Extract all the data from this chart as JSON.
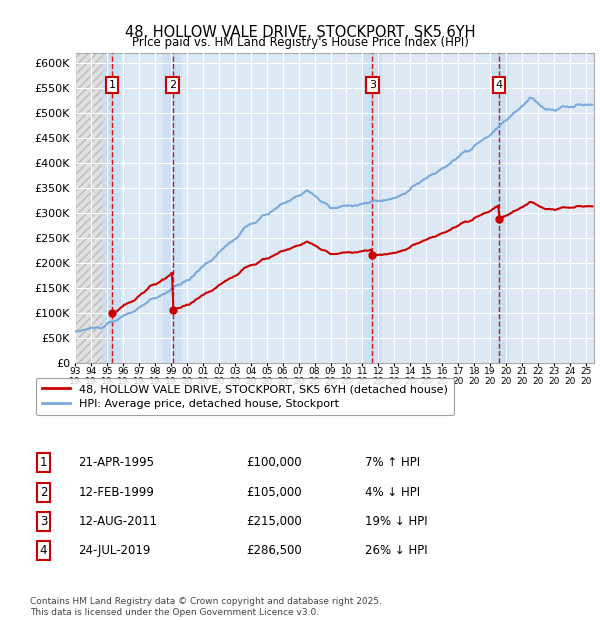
{
  "title": "48, HOLLOW VALE DRIVE, STOCKPORT, SK5 6YH",
  "subtitle": "Price paid vs. HM Land Registry's House Price Index (HPI)",
  "ylim": [
    0,
    620000
  ],
  "yticks": [
    0,
    50000,
    100000,
    150000,
    200000,
    250000,
    300000,
    350000,
    400000,
    450000,
    500000,
    550000,
    600000
  ],
  "xlim_start": 1993.0,
  "xlim_end": 2025.5,
  "bg_plot_color": "#dce9f5",
  "grid_color": "#ffffff",
  "sale_dates": [
    1995.31,
    1999.12,
    2011.62,
    2019.56
  ],
  "sale_prices": [
    100000,
    105000,
    215000,
    286500
  ],
  "sale_labels": [
    "1",
    "2",
    "3",
    "4"
  ],
  "sale_line_color": "#cc0000",
  "hpi_line_color": "#7aaadd",
  "vline_color": "#cc0000",
  "legend_house": "48, HOLLOW VALE DRIVE, STOCKPORT, SK5 6YH (detached house)",
  "legend_hpi": "HPI: Average price, detached house, Stockport",
  "table_entries": [
    {
      "label": "1",
      "date": "21-APR-1995",
      "price": "£100,000",
      "pct": "7% ↑ HPI"
    },
    {
      "label": "2",
      "date": "12-FEB-1999",
      "price": "£105,000",
      "pct": "4% ↓ HPI"
    },
    {
      "label": "3",
      "date": "12-AUG-2011",
      "price": "£215,000",
      "pct": "19% ↓ HPI"
    },
    {
      "label": "4",
      "date": "24-JUL-2019",
      "price": "£286,500",
      "pct": "26% ↓ HPI"
    }
  ],
  "footer": "Contains HM Land Registry data © Crown copyright and database right 2025.\nThis data is licensed under the Open Government Licence v3.0."
}
